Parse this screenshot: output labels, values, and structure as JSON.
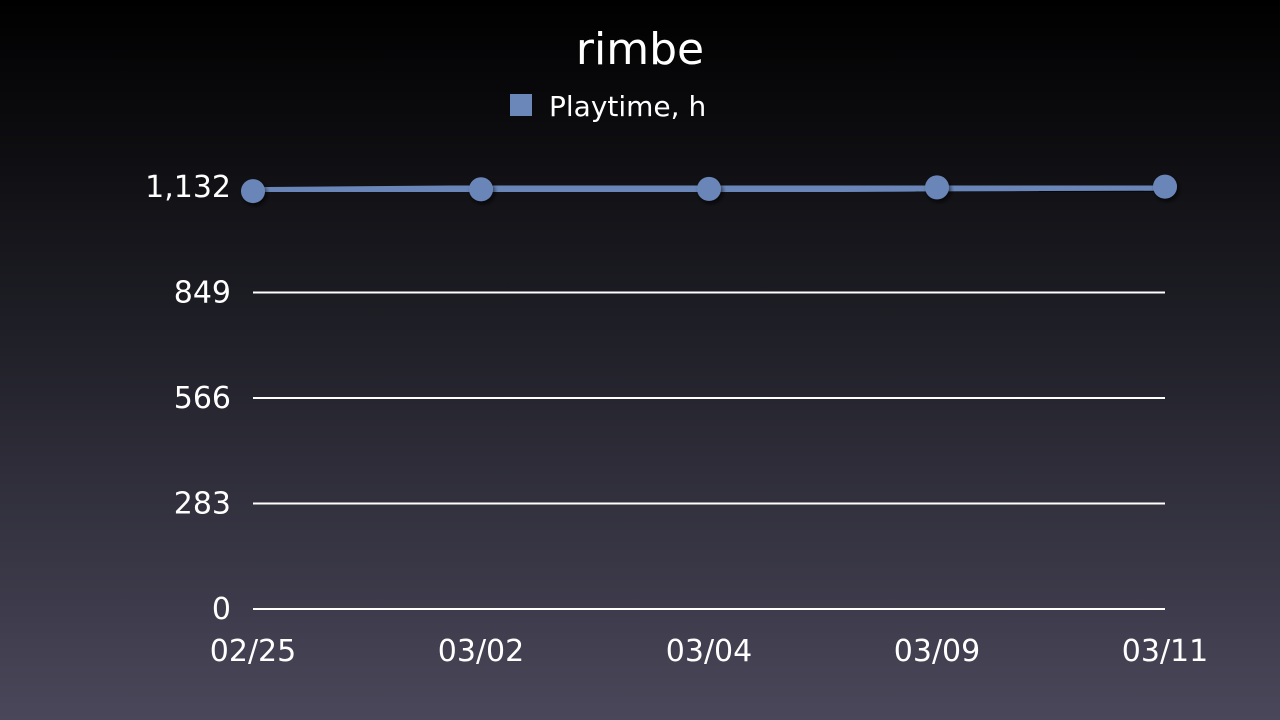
{
  "chart_data": {
    "type": "line",
    "title": "rimbe",
    "categories": [
      "02/25",
      "03/02",
      "03/04",
      "03/09",
      "03/11"
    ],
    "series": [
      {
        "name": "Playtime, h",
        "values": [
          1121,
          1126,
          1127,
          1131,
          1133
        ]
      }
    ],
    "yticks": [
      "0",
      "283",
      "566",
      "849",
      "1,132"
    ],
    "ylim": [
      0,
      1132
    ],
    "grid": true,
    "legend": "top-center",
    "colors": {
      "series": "#6b86b8",
      "grid": "#ffffff",
      "text": "#ffffff"
    }
  }
}
